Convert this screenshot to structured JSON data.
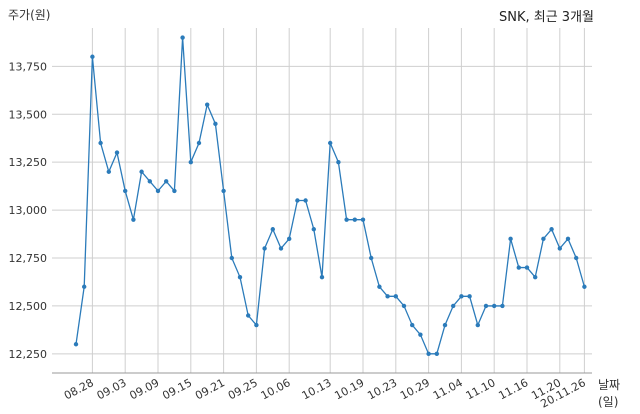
{
  "header": {
    "title": "SNK, 최근 3개월",
    "y_unit": "주가(원)",
    "x_unit": "날짜(일)"
  },
  "chart_data": {
    "type": "line",
    "title": "SNK, 최근 3개월",
    "xlabel": "날짜(일)",
    "ylabel": "주가(원)",
    "ylim": [
      12150,
      13950
    ],
    "yticks": [
      12250,
      12500,
      12750,
      13000,
      13250,
      13500,
      13750
    ],
    "ytick_labels": [
      "12,250",
      "12,500",
      "12,750",
      "13,000",
      "13,250",
      "13,500",
      "13,750"
    ],
    "grid": true,
    "series_color": "#2b7bba",
    "x_tick_labels": [
      {
        "index": 2,
        "label": "08.28"
      },
      {
        "index": 6,
        "label": "09.03"
      },
      {
        "index": 10,
        "label": "09.09"
      },
      {
        "index": 14,
        "label": "09.15"
      },
      {
        "index": 18,
        "label": "09.21"
      },
      {
        "index": 22,
        "label": "09.25"
      },
      {
        "index": 26,
        "label": "10.06"
      },
      {
        "index": 31,
        "label": "10.13"
      },
      {
        "index": 35,
        "label": "10.19"
      },
      {
        "index": 39,
        "label": "10.23"
      },
      {
        "index": 43,
        "label": "10.29"
      },
      {
        "index": 47,
        "label": "11.04"
      },
      {
        "index": 51,
        "label": "11.10"
      },
      {
        "index": 55,
        "label": "11.16"
      },
      {
        "index": 59,
        "label": "11.20"
      },
      {
        "index": 62,
        "label": "20.11.26"
      }
    ],
    "series": [
      {
        "values": [
          12300,
          12600,
          13800,
          13350,
          13200,
          13300,
          13100,
          12950,
          13200,
          13150,
          13100,
          13150,
          13100,
          13900,
          13250,
          13350,
          13550,
          13450,
          13100,
          12750,
          12650,
          12450,
          12400,
          12800,
          12900,
          12800,
          12850,
          13050,
          13050,
          12900,
          12650,
          13350,
          13250,
          12950,
          12950,
          12950,
          12750,
          12600,
          12550,
          12550,
          12500,
          12400,
          12350,
          12250,
          12250,
          12400,
          12500,
          12550,
          12550,
          12400,
          12500,
          12500,
          12500,
          12850,
          12700,
          12700,
          12650,
          12850,
          12900,
          12800,
          12850,
          12750,
          12600
        ]
      }
    ]
  }
}
